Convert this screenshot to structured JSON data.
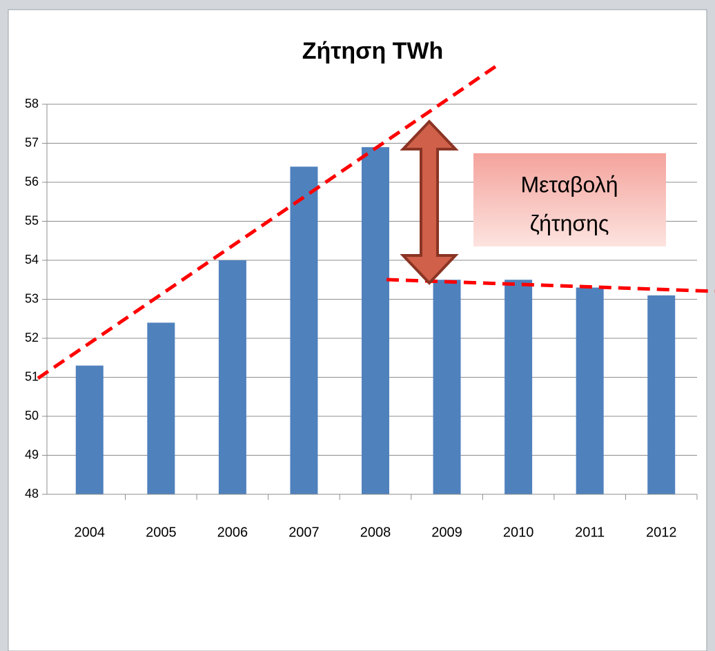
{
  "chart_data": {
    "type": "bar",
    "title": "Ζήτηση TWh",
    "categories": [
      "2004",
      "2005",
      "2006",
      "2007",
      "2008",
      "2009",
      "2010",
      "2011",
      "2012"
    ],
    "values": [
      51.3,
      52.4,
      54.0,
      56.4,
      56.9,
      53.5,
      53.5,
      53.3,
      53.1
    ],
    "color": "#4f81bd",
    "ylim": [
      48,
      58
    ],
    "yticks": [
      48,
      49,
      50,
      51,
      52,
      53,
      54,
      55,
      56,
      57,
      58
    ],
    "grid": true,
    "annotation": [
      "Μεταβολή",
      "ζήτησης"
    ]
  }
}
